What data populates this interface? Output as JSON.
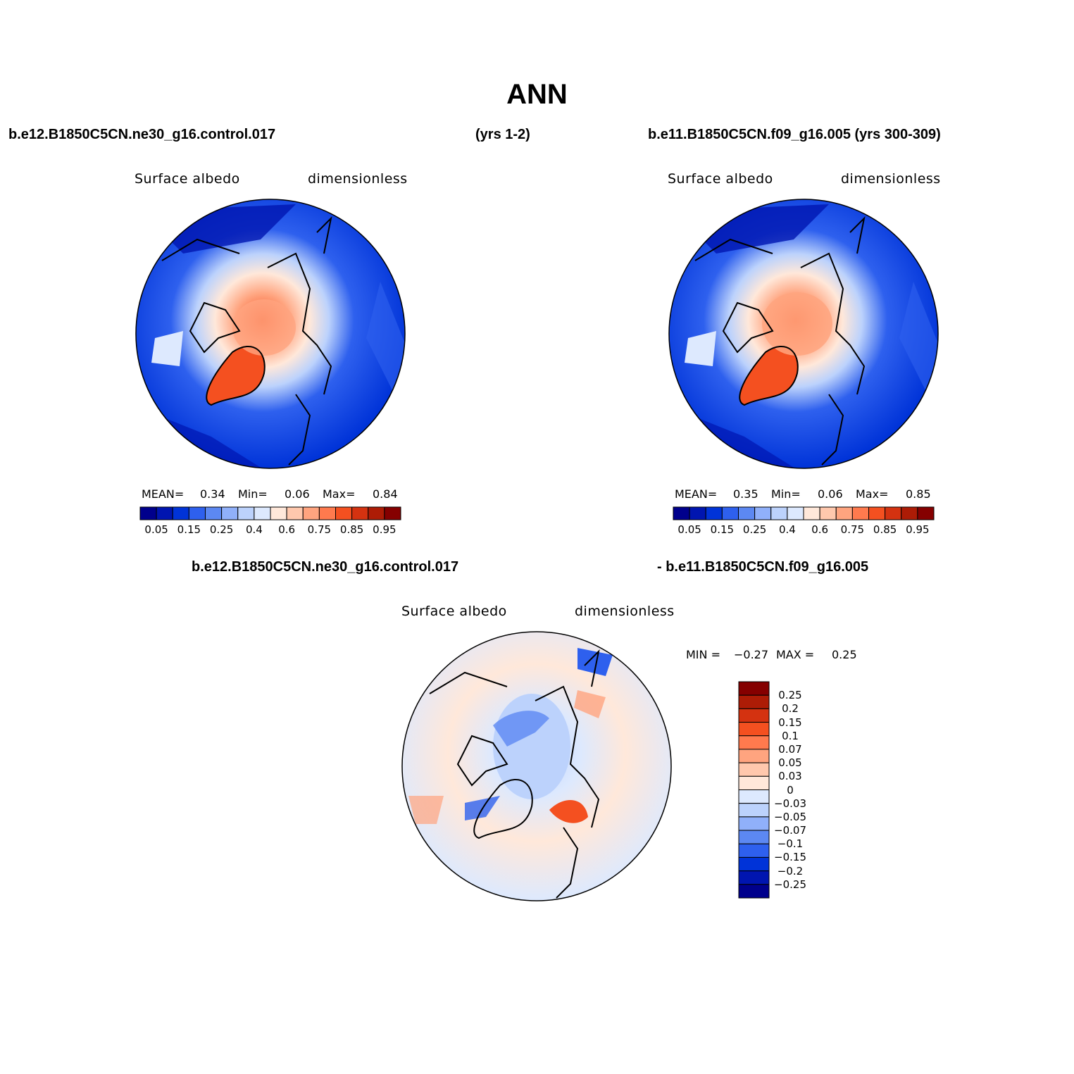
{
  "title": "ANN",
  "header": {
    "case1": "b.e12.B1850C5CN.ne30_g16.control.017",
    "case1_years": "(yrs 1-2)",
    "case2": "b.e11.B1850C5CN.f09_g16.005 (yrs 300-309)",
    "diff_case1": "b.e12.B1850C5CN.ne30_g16.control.017",
    "diff_case2": "- b.e11.B1850C5CN.f09_g16.005"
  },
  "panels": {
    "left": {
      "variable": "Surface albedo",
      "units": "dimensionless",
      "mean_label": "MEAN=",
      "mean": "0.34",
      "min_label": "Min=",
      "min": "0.06",
      "max_label": "Max=",
      "max": "0.84"
    },
    "right": {
      "variable": "Surface albedo",
      "units": "dimensionless",
      "mean_label": "MEAN=",
      "mean": "0.35",
      "min_label": "Min=",
      "min": "0.06",
      "max_label": "Max=",
      "max": "0.85"
    },
    "diff": {
      "variable": "Surface albedo",
      "units": "dimensionless",
      "min_label": "MIN =",
      "min": "−0.27",
      "max_label": "MAX =",
      "max": "0.25"
    }
  },
  "colorbar_abs": {
    "colors": [
      "#00008c",
      "#0015b0",
      "#0033d8",
      "#2e60ee",
      "#5c88f2",
      "#90b0fa",
      "#bcd2fc",
      "#dde9fe",
      "#ffe8da",
      "#ffc8ad",
      "#ffa47f",
      "#ff7a4e",
      "#f45020",
      "#d43210",
      "#ad1c06",
      "#850000"
    ],
    "tick_labels": [
      "0.05",
      "0.15",
      "0.25",
      "0.4",
      "0.6",
      "0.75",
      "0.85",
      "0.95"
    ]
  },
  "colorbar_diff": {
    "colors": [
      "#850000",
      "#ad1c06",
      "#d43210",
      "#f45020",
      "#ff7a4e",
      "#ffa47f",
      "#ffc8ad",
      "#ffe8da",
      "#dde9fe",
      "#bcd2fc",
      "#90b0fa",
      "#5c88f2",
      "#2e60ee",
      "#0033d8",
      "#0015b0",
      "#00008c"
    ],
    "tick_labels": [
      "0.25",
      "0.2",
      "0.15",
      "0.1",
      "0.07",
      "0.05",
      "0.03",
      "0",
      "−0.03",
      "−0.05",
      "−0.07",
      "−0.1",
      "−0.15",
      "−0.2",
      "−0.25"
    ]
  }
}
